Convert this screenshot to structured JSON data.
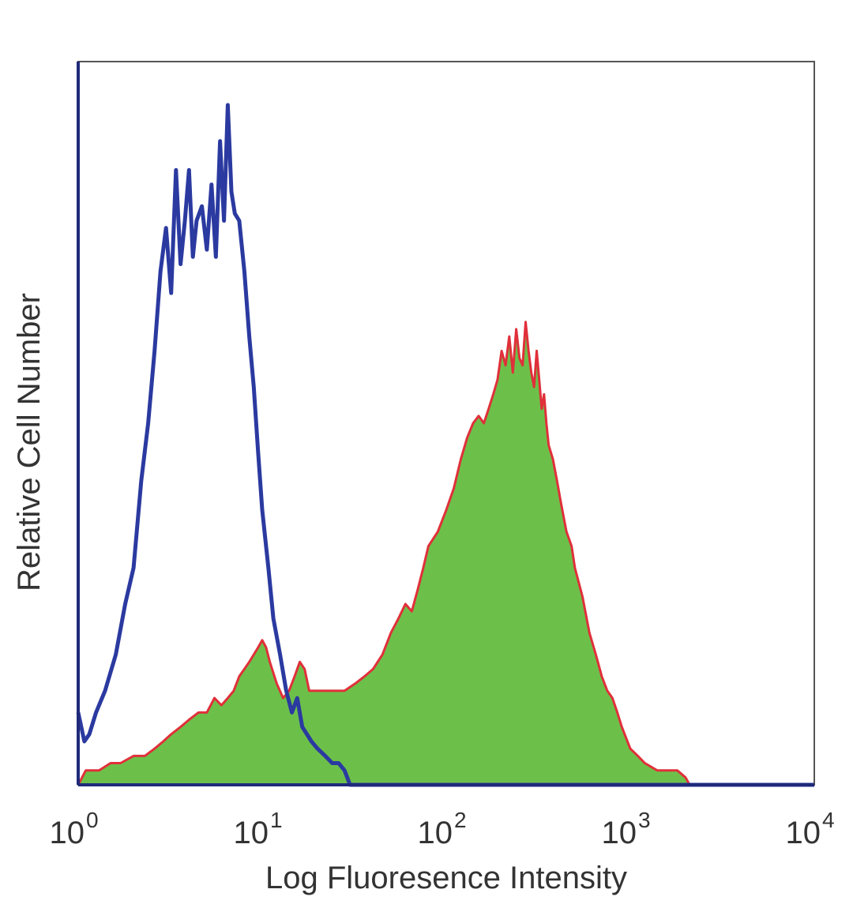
{
  "chart_data": {
    "type": "area",
    "title": "",
    "xlabel": "Log Fluoresence Intensity",
    "ylabel": "Relative Cell Number",
    "xscale": "log",
    "xlim": [
      1,
      10000
    ],
    "ylim": [
      0,
      1
    ],
    "grid": false,
    "x_ticks": [
      {
        "base": "10",
        "exp": "0",
        "value": 1
      },
      {
        "base": "10",
        "exp": "1",
        "value": 10
      },
      {
        "base": "10",
        "exp": "2",
        "value": 100
      },
      {
        "base": "10",
        "exp": "3",
        "value": 1000
      },
      {
        "base": "10",
        "exp": "4",
        "value": 10000
      }
    ],
    "colors": {
      "isotype_line": "#2b3aa0",
      "stained_fill": "#6cc04a",
      "stained_edge": "#e0303a",
      "frame": "#555555",
      "axis": "#1f2a7a"
    },
    "series": [
      {
        "style": "line",
        "color": "#2b3aa0",
        "x": [
          1.0,
          1.08,
          1.15,
          1.25,
          1.4,
          1.6,
          1.8,
          2.0,
          2.2,
          2.4,
          2.6,
          2.8,
          3.0,
          3.2,
          3.4,
          3.6,
          3.8,
          4.0,
          4.2,
          4.4,
          4.7,
          5.0,
          5.3,
          5.6,
          5.9,
          6.2,
          6.5,
          6.8,
          7.1,
          7.5,
          8.0,
          8.5,
          9.0,
          9.5,
          10.0,
          10.8,
          11.5,
          12.5,
          13.5,
          14.5,
          15.5,
          16.5,
          17.5,
          18.5,
          20.0,
          22.0,
          24.0,
          26.0,
          28.0,
          30.0,
          100,
          10000
        ],
        "y": [
          0.1,
          0.06,
          0.07,
          0.1,
          0.13,
          0.18,
          0.25,
          0.3,
          0.42,
          0.5,
          0.6,
          0.71,
          0.77,
          0.68,
          0.85,
          0.72,
          0.78,
          0.85,
          0.73,
          0.78,
          0.8,
          0.74,
          0.83,
          0.73,
          0.89,
          0.78,
          0.94,
          0.82,
          0.79,
          0.78,
          0.71,
          0.62,
          0.55,
          0.46,
          0.38,
          0.3,
          0.23,
          0.18,
          0.13,
          0.1,
          0.12,
          0.08,
          0.07,
          0.06,
          0.05,
          0.04,
          0.03,
          0.03,
          0.02,
          0.0,
          0.0,
          0.0
        ]
      },
      {
        "style": "filled",
        "color": "#6cc04a",
        "edge_color": "#e0303a",
        "x": [
          1.0,
          1.1,
          1.3,
          1.5,
          1.7,
          2.0,
          2.3,
          2.6,
          2.9,
          3.2,
          3.6,
          4.0,
          4.5,
          5.0,
          5.5,
          6.0,
          6.5,
          7.0,
          7.5,
          8.0,
          8.5,
          9.0,
          9.5,
          10.0,
          10.5,
          11.0,
          12.0,
          13.0,
          14.0,
          15.0,
          16.0,
          17.0,
          18.0,
          20.0,
          22.0,
          25.0,
          28.0,
          32.0,
          36.0,
          40.0,
          45.0,
          50.0,
          55.0,
          60.0,
          65.0,
          70.0,
          75.0,
          80.0,
          90.0,
          100,
          110,
          120,
          130,
          140,
          150,
          160,
          170,
          180,
          190,
          200,
          210,
          220,
          230,
          240,
          250,
          260,
          270,
          280,
          290,
          300,
          310,
          320,
          330,
          340,
          350,
          360,
          380,
          400,
          420,
          450,
          480,
          500,
          550,
          600,
          650,
          700,
          750,
          800,
          850,
          900,
          1000,
          1100,
          1200,
          1400,
          1600,
          1800,
          2000,
          2100
        ],
        "y": [
          0.0,
          0.02,
          0.02,
          0.03,
          0.03,
          0.04,
          0.04,
          0.05,
          0.06,
          0.07,
          0.08,
          0.09,
          0.1,
          0.1,
          0.12,
          0.11,
          0.12,
          0.13,
          0.15,
          0.16,
          0.17,
          0.18,
          0.19,
          0.2,
          0.19,
          0.17,
          0.14,
          0.12,
          0.13,
          0.15,
          0.17,
          0.16,
          0.13,
          0.13,
          0.13,
          0.13,
          0.13,
          0.14,
          0.15,
          0.16,
          0.18,
          0.21,
          0.23,
          0.25,
          0.24,
          0.27,
          0.3,
          0.33,
          0.35,
          0.38,
          0.41,
          0.45,
          0.48,
          0.5,
          0.51,
          0.5,
          0.52,
          0.54,
          0.56,
          0.6,
          0.58,
          0.62,
          0.57,
          0.63,
          0.59,
          0.58,
          0.64,
          0.6,
          0.57,
          0.55,
          0.6,
          0.56,
          0.52,
          0.54,
          0.5,
          0.47,
          0.45,
          0.42,
          0.39,
          0.35,
          0.33,
          0.3,
          0.26,
          0.21,
          0.18,
          0.15,
          0.13,
          0.12,
          0.1,
          0.08,
          0.05,
          0.04,
          0.03,
          0.02,
          0.02,
          0.02,
          0.01,
          0.0
        ]
      }
    ]
  }
}
